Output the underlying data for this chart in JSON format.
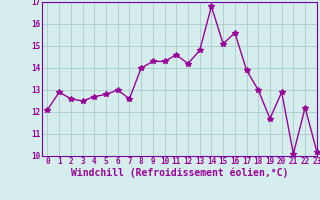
{
  "x": [
    0,
    1,
    2,
    3,
    4,
    5,
    6,
    7,
    8,
    9,
    10,
    11,
    12,
    13,
    14,
    15,
    16,
    17,
    18,
    19,
    20,
    21,
    22,
    23
  ],
  "y": [
    12.1,
    12.9,
    12.6,
    12.5,
    12.7,
    12.8,
    13.0,
    12.6,
    14.0,
    14.3,
    14.3,
    14.6,
    14.2,
    14.8,
    16.8,
    15.1,
    15.6,
    13.9,
    13.0,
    11.7,
    12.9,
    10.1,
    12.2,
    10.2
  ],
  "line_color": "#990099",
  "marker": "*",
  "marker_size": 4,
  "background_color": "#d5eeed",
  "grid_color": "#aacccc",
  "xlabel": "Windchill (Refroidissement éolien,°C)",
  "ylim": [
    10,
    17
  ],
  "xlim": [
    -0.5,
    23
  ],
  "yticks": [
    10,
    11,
    12,
    13,
    14,
    15,
    16,
    17
  ],
  "xticks": [
    0,
    1,
    2,
    3,
    4,
    5,
    6,
    7,
    8,
    9,
    10,
    11,
    12,
    13,
    14,
    15,
    16,
    17,
    18,
    19,
    20,
    21,
    22,
    23
  ],
  "tick_label_fontsize": 5.5,
  "xlabel_fontsize": 7.0,
  "line_width": 1.0,
  "spine_color": "#7700aa"
}
